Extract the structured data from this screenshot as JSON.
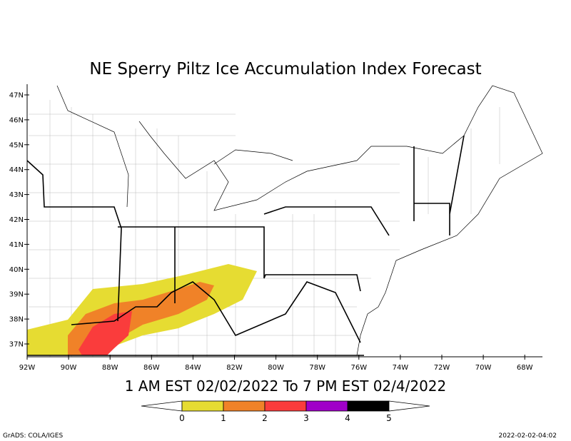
{
  "title": "NE Sperry Piltz Ice Accumulation Index Forecast",
  "subtitle": "1 AM EST 02/02/2022 To 7 PM EST 02/4/2022",
  "lat_labels": [
    "47N",
    "46N",
    "45N",
    "44N",
    "43N",
    "42N",
    "41N",
    "40N",
    "39N",
    "38N",
    "37N"
  ],
  "lon_labels": [
    "92W",
    "90W",
    "88W",
    "86W",
    "84W",
    "82W",
    "80W",
    "78W",
    "76W",
    "74W",
    "72W",
    "70W",
    "68W"
  ],
  "colorbar": {
    "ticks": [
      0,
      1,
      2,
      3,
      4,
      5
    ],
    "colors": [
      "#e6dc32",
      "#f08228",
      "#fa3c3c",
      "#a000c8",
      "#000000"
    ]
  },
  "footer_left": "GrADS: COLA/IGES",
  "footer_right": "2022-02-02-04:02"
}
